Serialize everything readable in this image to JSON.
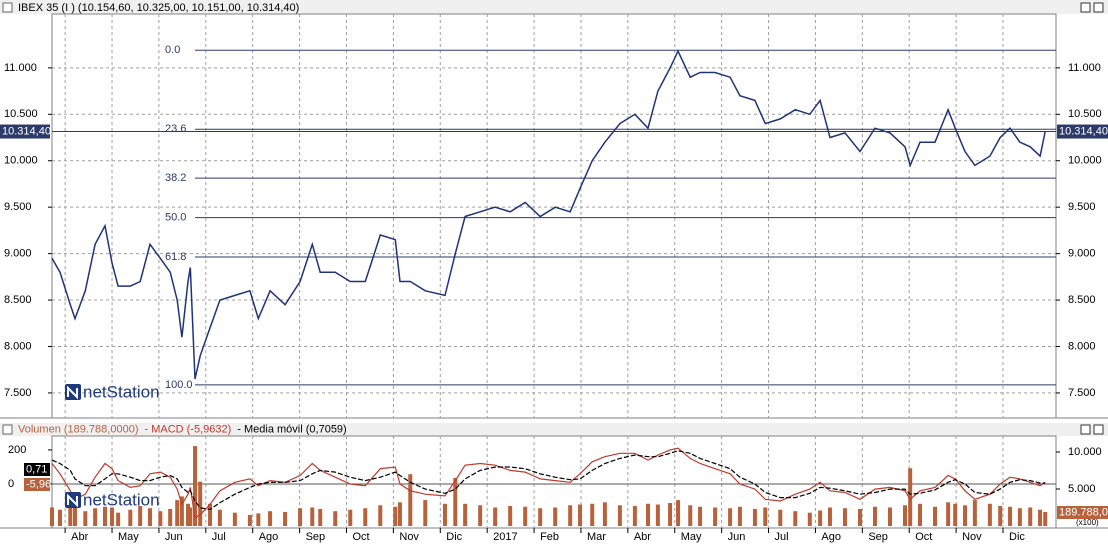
{
  "chart_data": [
    {
      "type": "line",
      "title": "IBEX 35 (I ) (10.154,60, 10.325,00, 10.151,00, 10.314,40)",
      "logo": "netStation",
      "last_label": "10.314,40",
      "color": "#1f3478",
      "grid": true,
      "xlim": [
        -0.28,
        21.13
      ],
      "ylim": [
        7230,
        11580
      ],
      "xticks": [
        {
          "value": 0,
          "label": "Abr"
        },
        {
          "value": 1,
          "label": "May"
        },
        {
          "value": 2,
          "label": "Jun"
        },
        {
          "value": 3,
          "label": "Jul"
        },
        {
          "value": 4,
          "label": "Ago"
        },
        {
          "value": 5,
          "label": "Sep"
        },
        {
          "value": 6,
          "label": "Oct"
        },
        {
          "value": 7,
          "label": "Nov"
        },
        {
          "value": 8,
          "label": "Dic"
        },
        {
          "value": 9,
          "label": "2017"
        },
        {
          "value": 10,
          "label": "Feb"
        },
        {
          "value": 11,
          "label": "Mar"
        },
        {
          "value": 12,
          "label": "Abr"
        },
        {
          "value": 13,
          "label": "May"
        },
        {
          "value": 14,
          "label": "Jun"
        },
        {
          "value": 15,
          "label": "Jul"
        },
        {
          "value": 16,
          "label": "Ago"
        },
        {
          "value": 17,
          "label": "Sep"
        },
        {
          "value": 18,
          "label": "Oct"
        },
        {
          "value": 19,
          "label": "Nov"
        },
        {
          "value": 20,
          "label": "Dic"
        }
      ],
      "yticks": [
        {
          "value": 7500,
          "label": "7.500"
        },
        {
          "value": 8000,
          "label": "8.000"
        },
        {
          "value": 8500,
          "label": "8.500"
        },
        {
          "value": 9000,
          "label": "9.000"
        },
        {
          "value": 9500,
          "label": "9.500"
        },
        {
          "value": 10000,
          "label": "10.000"
        },
        {
          "value": 10500,
          "label": "10.500"
        },
        {
          "value": 11000,
          "label": "11.000"
        }
      ],
      "fibonacci": [
        {
          "label": "0.0",
          "value": 11190
        },
        {
          "label": "23.6",
          "value": 10339
        },
        {
          "label": "38.2",
          "value": 9813
        },
        {
          "label": "50.0",
          "value": 9388
        },
        {
          "label": "61.8",
          "value": 8963
        },
        {
          "label": "100.0",
          "value": 7586
        }
      ],
      "x": [
        -0.28,
        -0.11,
        0.11,
        0.21,
        0.43,
        0.64,
        0.85,
        1.0,
        1.13,
        1.39,
        1.6,
        1.81,
        2.03,
        2.24,
        2.39,
        2.49,
        2.62,
        2.67,
        2.77,
        2.88,
        3.09,
        3.3,
        3.62,
        3.94,
        4.12,
        4.37,
        4.69,
        5.01,
        5.27,
        5.44,
        5.76,
        6.08,
        6.4,
        6.72,
        7.04,
        7.14,
        7.36,
        7.68,
        8.1,
        8.32,
        8.53,
        8.85,
        9.17,
        9.49,
        9.81,
        10.13,
        10.45,
        10.77,
        10.98,
        11.24,
        11.51,
        11.83,
        12.15,
        12.43,
        12.64,
        12.9,
        13.07,
        13.33,
        13.54,
        13.86,
        14.18,
        14.39,
        14.71,
        14.93,
        15.25,
        15.57,
        15.88,
        16.1,
        16.31,
        16.63,
        16.95,
        17.27,
        17.59,
        17.91,
        18.02,
        18.23,
        18.55,
        18.83,
        18.98,
        19.19,
        19.4,
        19.72,
        19.94,
        20.15,
        20.36,
        20.58,
        20.79,
        20.9
      ],
      "values": [
        8950,
        8800,
        8450,
        8300,
        8600,
        9100,
        9300,
        8900,
        8650,
        8650,
        8700,
        9100,
        8950,
        8800,
        8500,
        8100,
        8700,
        8850,
        7650,
        7900,
        8200,
        8500,
        8550,
        8600,
        8300,
        8600,
        8450,
        8700,
        9100,
        8800,
        8800,
        8700,
        8700,
        9200,
        9150,
        8700,
        8700,
        8600,
        8550,
        9000,
        9400,
        9450,
        9500,
        9450,
        9550,
        9400,
        9500,
        9450,
        9700,
        10000,
        10200,
        10400,
        10500,
        10350,
        10750,
        11000,
        11180,
        10900,
        10950,
        10950,
        10900,
        10700,
        10650,
        10400,
        10450,
        10550,
        10500,
        10650,
        10250,
        10300,
        10100,
        10350,
        10300,
        10150,
        9950,
        10200,
        10200,
        10550,
        10350,
        10100,
        9950,
        10050,
        10250,
        10350,
        10200,
        10150,
        10050,
        10314.4
      ]
    },
    {
      "type": "macd",
      "logo": "netStation",
      "badges": [
        "0,71",
        "-5,96"
      ],
      "volume_badge": "189.788,0",
      "scale_note": "(x100)",
      "xlim": [
        -0.28,
        21.13
      ],
      "ylim": [
        -259,
        282
      ],
      "yticks": [
        0,
        200
      ],
      "y2lim": [
        -270,
        12160
      ],
      "y2ticks": [
        {
          "value": 5000,
          "label": "5.000"
        },
        {
          "value": 10000,
          "label": "10.000"
        }
      ],
      "x": [
        -0.28,
        -0.11,
        0.11,
        0.21,
        0.43,
        0.64,
        0.85,
        1.0,
        1.13,
        1.39,
        1.6,
        1.81,
        2.03,
        2.24,
        2.39,
        2.49,
        2.62,
        2.67,
        2.77,
        2.88,
        3.09,
        3.3,
        3.62,
        3.94,
        4.12,
        4.37,
        4.69,
        5.01,
        5.27,
        5.44,
        5.76,
        6.08,
        6.4,
        6.72,
        7.04,
        7.14,
        7.36,
        7.68,
        8.1,
        8.32,
        8.53,
        8.85,
        9.17,
        9.49,
        9.81,
        10.13,
        10.45,
        10.77,
        10.98,
        11.24,
        11.51,
        11.83,
        12.15,
        12.43,
        12.64,
        12.9,
        13.07,
        13.33,
        13.54,
        13.86,
        14.18,
        14.39,
        14.71,
        14.93,
        15.25,
        15.57,
        15.88,
        16.1,
        16.31,
        16.63,
        16.95,
        17.27,
        17.59,
        17.91,
        18.02,
        18.23,
        18.55,
        18.83,
        18.98,
        19.19,
        19.4,
        19.72,
        19.94,
        20.15,
        20.36,
        20.58,
        20.79,
        20.9
      ],
      "series": [
        {
          "name": "Volumen (189.788,0000)",
          "color": "#b8623c",
          "axis": "y2",
          "values": [
            2500,
            2200,
            3000,
            2800,
            2000,
            2400,
            2600,
            2500,
            1800,
            2200,
            2700,
            2400,
            2000,
            2300,
            3500,
            4000,
            3000,
            2500,
            10800,
            6000,
            3000,
            2200,
            1800,
            1500,
            1700,
            2000,
            1900,
            2400,
            2500,
            2300,
            2000,
            2200,
            2400,
            2800,
            2600,
            3200,
            7000,
            3500,
            3000,
            6500,
            3000,
            2800,
            2500,
            2700,
            2600,
            2400,
            2500,
            2800,
            2900,
            3000,
            3200,
            2800,
            2700,
            3000,
            2900,
            3100,
            3500,
            2800,
            2600,
            2500,
            2400,
            2600,
            2300,
            2500,
            2200,
            2000,
            1800,
            2100,
            2500,
            2400,
            2300,
            2600,
            2500,
            2800,
            7800,
            3000,
            2600,
            3200,
            3000,
            2800,
            3500,
            3000,
            2700,
            2600,
            2400,
            2500,
            2200,
            1898
          ]
        },
        {
          "name": "- MACD (-5,9632)",
          "color": "#c0392b",
          "values": [
            120,
            60,
            -40,
            -90,
            -60,
            40,
            120,
            90,
            20,
            -20,
            -10,
            60,
            70,
            40,
            -30,
            -120,
            -60,
            -20,
            -200,
            -180,
            -120,
            -40,
            10,
            30,
            -10,
            20,
            10,
            50,
            120,
            80,
            40,
            0,
            -10,
            90,
            100,
            0,
            -40,
            -60,
            -70,
            20,
            110,
            120,
            110,
            80,
            70,
            30,
            20,
            10,
            60,
            130,
            160,
            180,
            180,
            140,
            170,
            200,
            210,
            150,
            120,
            90,
            60,
            0,
            -30,
            -90,
            -100,
            -60,
            -30,
            10,
            -40,
            -50,
            -90,
            -30,
            -20,
            -40,
            -90,
            -40,
            -20,
            50,
            30,
            -40,
            -90,
            -60,
            0,
            40,
            30,
            10,
            -10,
            10
          ]
        },
        {
          "name": "- Media móvil (0,7059)",
          "color": "#000000",
          "values": [
            140,
            120,
            80,
            30,
            -10,
            -10,
            30,
            60,
            60,
            40,
            20,
            20,
            40,
            50,
            30,
            -20,
            -50,
            -40,
            -100,
            -140,
            -150,
            -110,
            -60,
            -20,
            0,
            10,
            10,
            20,
            60,
            80,
            70,
            40,
            20,
            40,
            70,
            50,
            10,
            -30,
            -55,
            -30,
            30,
            80,
            100,
            100,
            90,
            60,
            40,
            25,
            30,
            80,
            120,
            150,
            170,
            160,
            160,
            180,
            195,
            180,
            150,
            120,
            90,
            40,
            0,
            -50,
            -80,
            -80,
            -55,
            -20,
            -25,
            -40,
            -60,
            -50,
            -30,
            -30,
            -60,
            -55,
            -35,
            10,
            25,
            0,
            -50,
            -60,
            -30,
            10,
            25,
            20,
            5,
            5
          ]
        }
      ]
    }
  ]
}
